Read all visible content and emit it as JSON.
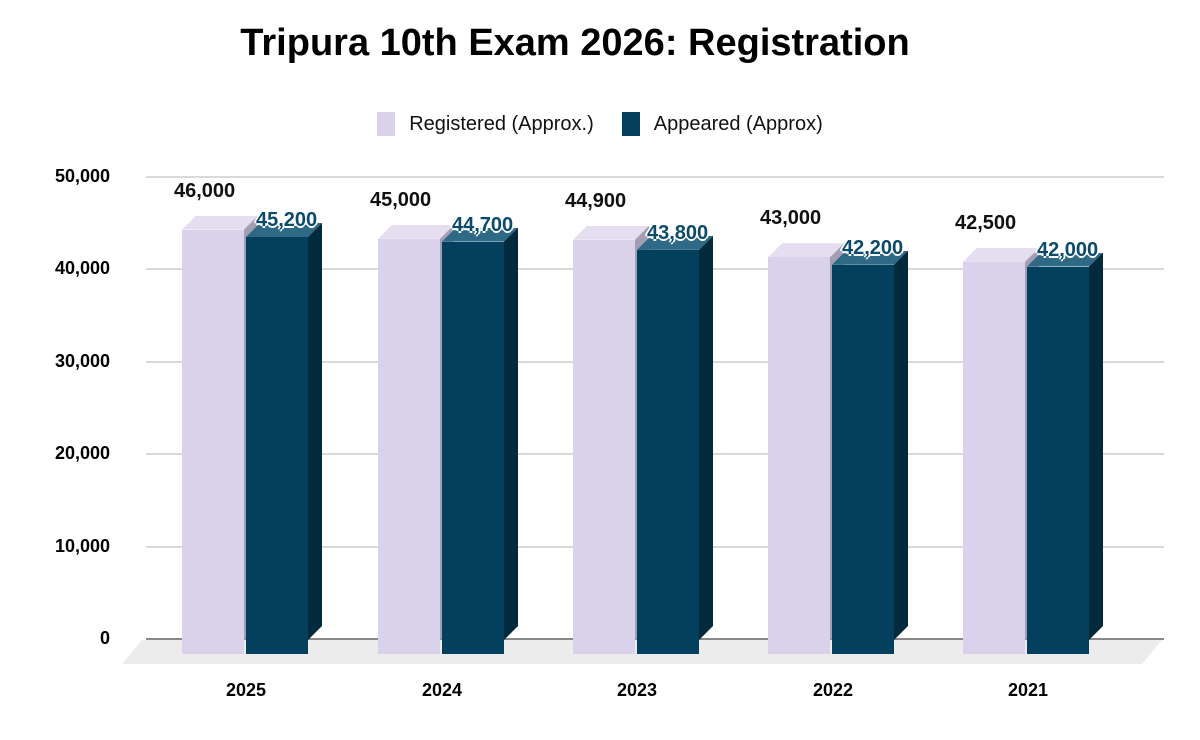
{
  "title": "Tripura 10th Exam 2026: Registration",
  "legend": [
    {
      "label": "Registered (Approx.)",
      "color": "#d9d2ea"
    },
    {
      "label": "Appeared (Approx)",
      "color": "#03405e"
    }
  ],
  "y_ticks": [
    "50,000",
    "40,000",
    "30,000",
    "20,000",
    "10,000",
    "0"
  ],
  "x_ticks": [
    "2025",
    "2024",
    "2023",
    "2022",
    "2021"
  ],
  "labels": {
    "registered": [
      "46,000",
      "45,000",
      "44,900",
      "43,000",
      "42,500"
    ],
    "appeared": [
      "45,200",
      "44,700",
      "43,800",
      "42,200",
      "42,000"
    ]
  },
  "chart_data": {
    "type": "bar",
    "title": "Tripura 10th Exam 2026: Registration",
    "categories": [
      "2025",
      "2024",
      "2023",
      "2022",
      "2021"
    ],
    "series": [
      {
        "name": "Registered (Approx.)",
        "color": "#d9d2ea",
        "values": [
          46000,
          45000,
          44900,
          43000,
          42500
        ]
      },
      {
        "name": "Appeared (Approx)",
        "color": "#03405e",
        "values": [
          45200,
          44700,
          43800,
          42200,
          42000
        ]
      }
    ],
    "xlabel": "",
    "ylabel": "",
    "ylim": [
      0,
      50000
    ],
    "yticks": [
      0,
      10000,
      20000,
      30000,
      40000,
      50000
    ],
    "grid": true,
    "legend_position": "top",
    "style": "3d-column"
  }
}
